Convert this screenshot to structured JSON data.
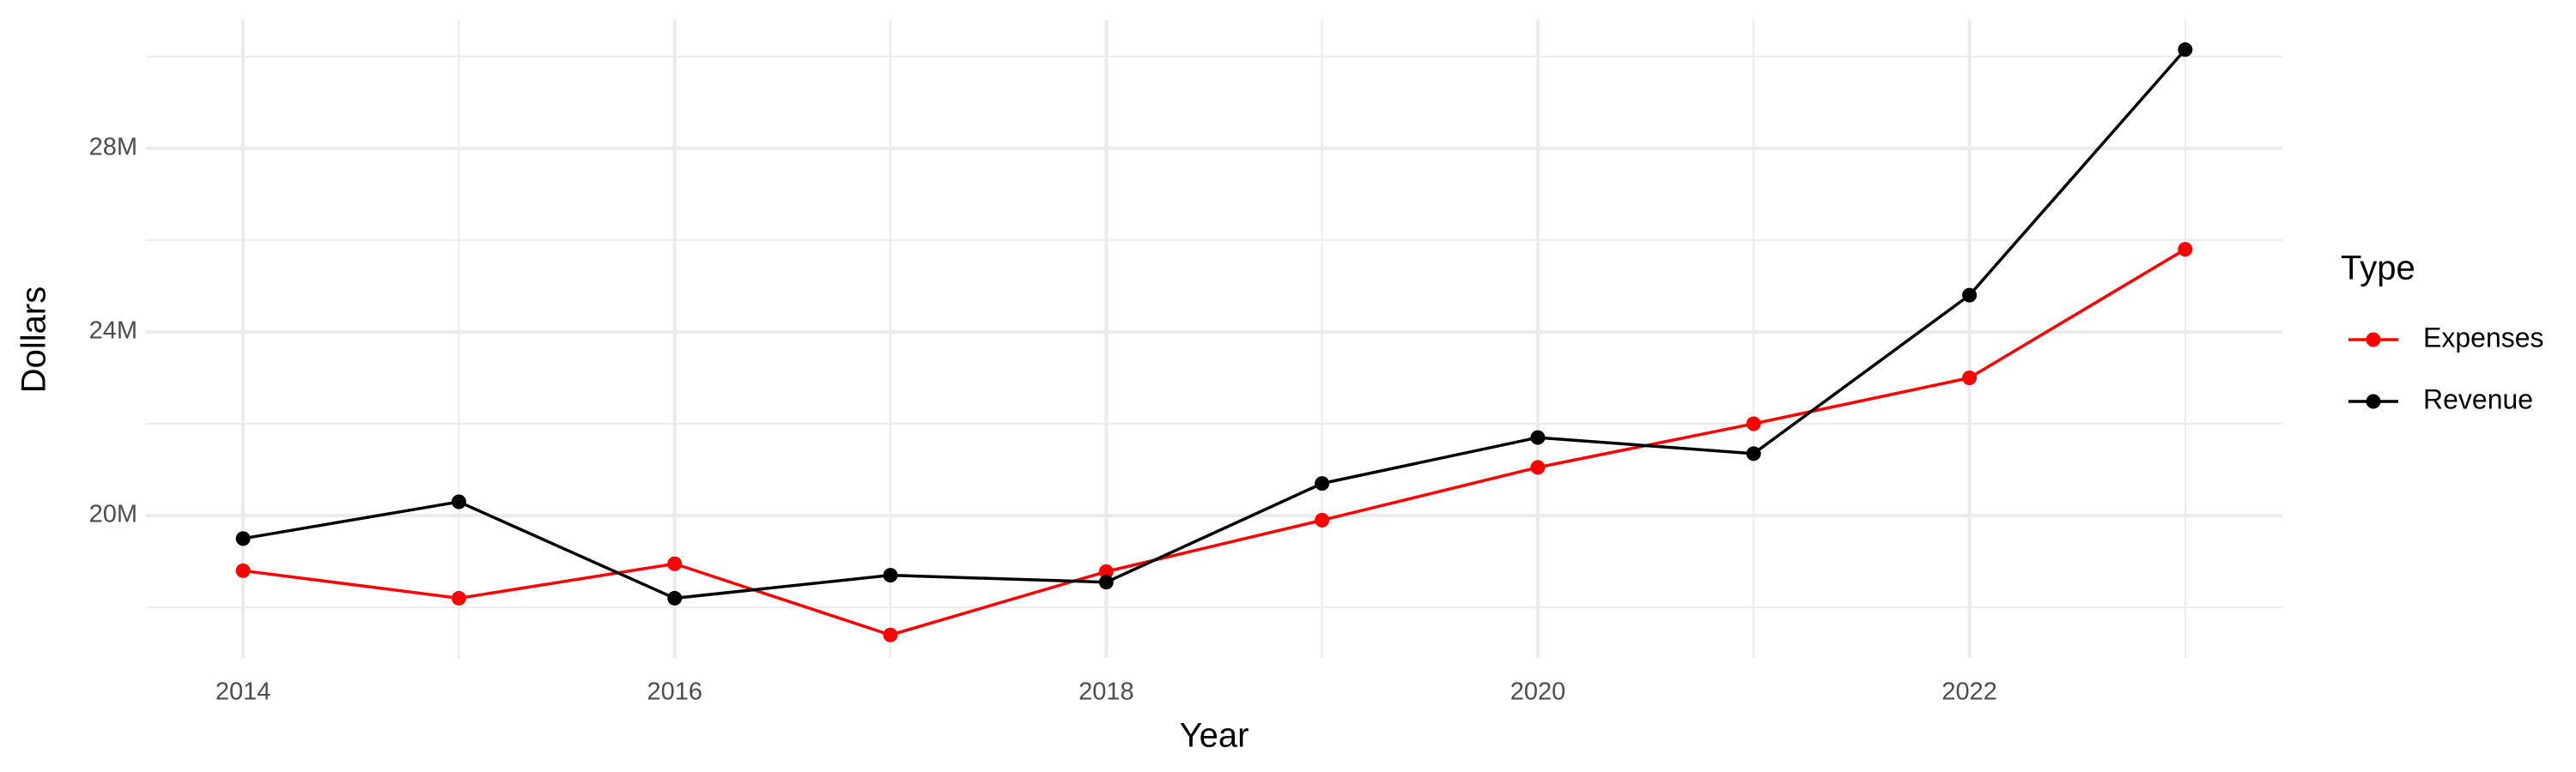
{
  "chart_data": {
    "type": "line",
    "x_label": "Year",
    "y_label": "Dollars",
    "legend_title": "Type",
    "x": [
      2014,
      2015,
      2016,
      2017,
      2018,
      2019,
      2020,
      2021,
      2022,
      2023
    ],
    "series": [
      {
        "name": "Expenses",
        "color": "#ff0000",
        "values": [
          18.8,
          18.2,
          18.95,
          17.4,
          18.78,
          19.9,
          21.05,
          22.0,
          23.0,
          25.8
        ]
      },
      {
        "name": "Revenue",
        "color": "#000000",
        "values": [
          19.5,
          20.3,
          18.2,
          18.7,
          18.55,
          20.7,
          21.7,
          21.35,
          24.8,
          30.15
        ]
      }
    ],
    "xlim": [
      2013.55,
      2023.45
    ],
    "xticks": [
      2014,
      2016,
      2018,
      2020,
      2022
    ],
    "minor_xticks": [
      2015,
      2017,
      2019,
      2021,
      2023
    ],
    "ylim": [
      16.9,
      30.8
    ],
    "yticks": [
      {
        "value": 20,
        "label": "20M"
      },
      {
        "value": 24,
        "label": "24M"
      },
      {
        "value": 28,
        "label": "28M"
      }
    ],
    "minor_yticks": [
      18,
      22,
      26,
      30
    ],
    "grid": true,
    "legend": "right"
  }
}
